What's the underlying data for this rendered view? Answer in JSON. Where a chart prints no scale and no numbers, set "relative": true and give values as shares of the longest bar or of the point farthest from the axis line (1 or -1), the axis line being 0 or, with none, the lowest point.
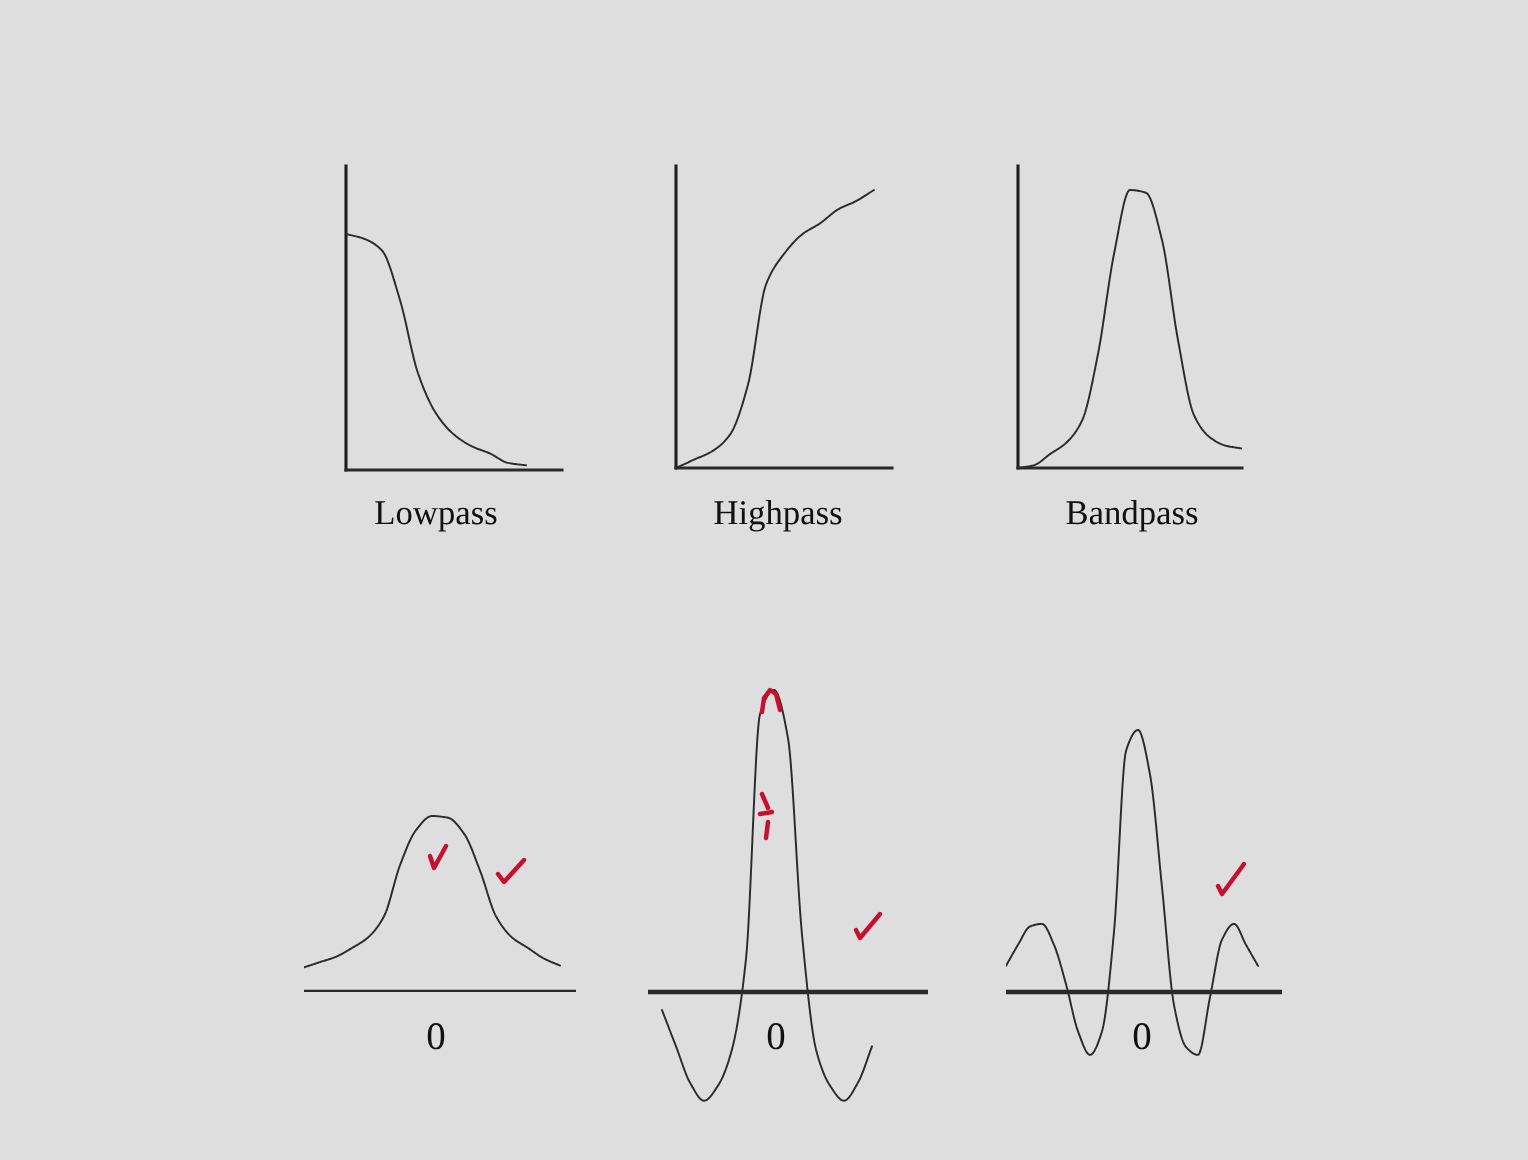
{
  "chart_data": [
    {
      "type": "line",
      "relative": true,
      "xlabel": "Lowpass",
      "color": "#2b2b2b",
      "categories": [
        null,
        null,
        null,
        null,
        null,
        null,
        null,
        null,
        null,
        null,
        null,
        null,
        null
      ],
      "values": [
        1,
        0.98,
        0.93,
        0.72,
        0.41,
        0.24,
        0.15,
        0.1,
        0.07,
        0.03,
        0.02,
        null,
        null
      ]
    },
    {
      "type": "line",
      "relative": true,
      "xlabel": "Highpass",
      "color": "#2b2b2b",
      "categories": [
        null,
        null,
        null,
        null,
        null,
        null,
        null,
        null,
        null,
        null,
        null,
        null,
        null
      ],
      "values": [
        0,
        0.03,
        0.06,
        0.12,
        0.3,
        0.66,
        0.77,
        0.84,
        0.88,
        0.93,
        0.96,
        1,
        null
      ]
    },
    {
      "type": "line",
      "relative": true,
      "xlabel": "Bandpass",
      "color": "#2b2b2b",
      "categories": [
        null,
        null,
        null,
        null,
        null,
        null,
        null,
        null,
        null,
        null,
        null,
        null,
        null,
        null,
        null
      ],
      "values": [
        0,
        0.01,
        0.05,
        0.09,
        0.17,
        0.41,
        0.77,
        1,
        0.99,
        0.82,
        0.46,
        0.19,
        0.11,
        0.08,
        0.07
      ]
    },
    {
      "type": "line",
      "relative": true,
      "xlabel": "0",
      "color": "#2b2b2b",
      "ref_lines": [
        {
          "axis": "y",
          "value": 0,
          "color": "#2a2a2a"
        }
      ],
      "categories": [
        null,
        null,
        null,
        null,
        null,
        null,
        null,
        null,
        null,
        null,
        null,
        null,
        null,
        null,
        null,
        null,
        null,
        null
      ],
      "values": [
        0.14,
        0.17,
        0.2,
        0.25,
        0.31,
        0.43,
        0.72,
        0.92,
        1,
        0.99,
        0.9,
        0.69,
        0.43,
        0.31,
        0.25,
        0.19,
        0.15,
        null
      ]
    },
    {
      "type": "line",
      "relative": true,
      "xlabel": "0",
      "color": "#2b2b2b",
      "ref_lines": [
        {
          "axis": "y",
          "value": 0,
          "color": "#2a2a2a"
        }
      ],
      "categories": [
        null,
        null,
        null,
        null,
        null,
        null,
        null,
        null,
        null,
        null,
        null,
        null,
        null,
        null,
        null,
        null,
        null,
        null,
        null,
        null,
        null
      ],
      "values": [
        null,
        -0.06,
        -0.18,
        -0.3,
        -0.36,
        -0.31,
        -0.19,
        0.11,
        0.92,
        1,
        0.84,
        0.19,
        -0.19,
        -0.31,
        -0.36,
        -0.3,
        -0.18,
        null,
        null,
        null,
        null
      ]
    },
    {
      "type": "line",
      "relative": true,
      "xlabel": "0",
      "color": "#2b2b2b",
      "ref_lines": [
        {
          "axis": "y",
          "value": 0,
          "color": "#2a2a2a"
        }
      ],
      "categories": [
        null,
        null,
        null,
        null,
        null,
        null,
        null,
        null,
        null,
        null,
        null,
        null,
        null,
        null,
        null,
        null,
        null,
        null,
        null,
        null,
        null,
        null,
        null,
        null
      ],
      "values": [
        0.1,
        0.18,
        0.25,
        0.26,
        0.18,
        0.03,
        -0.15,
        -0.24,
        -0.15,
        0.23,
        0.92,
        1,
        0.83,
        0.4,
        -0.05,
        -0.21,
        -0.24,
        -0.02,
        0.2,
        0.26,
        0.18,
        0.1,
        null,
        null
      ]
    }
  ]
}
